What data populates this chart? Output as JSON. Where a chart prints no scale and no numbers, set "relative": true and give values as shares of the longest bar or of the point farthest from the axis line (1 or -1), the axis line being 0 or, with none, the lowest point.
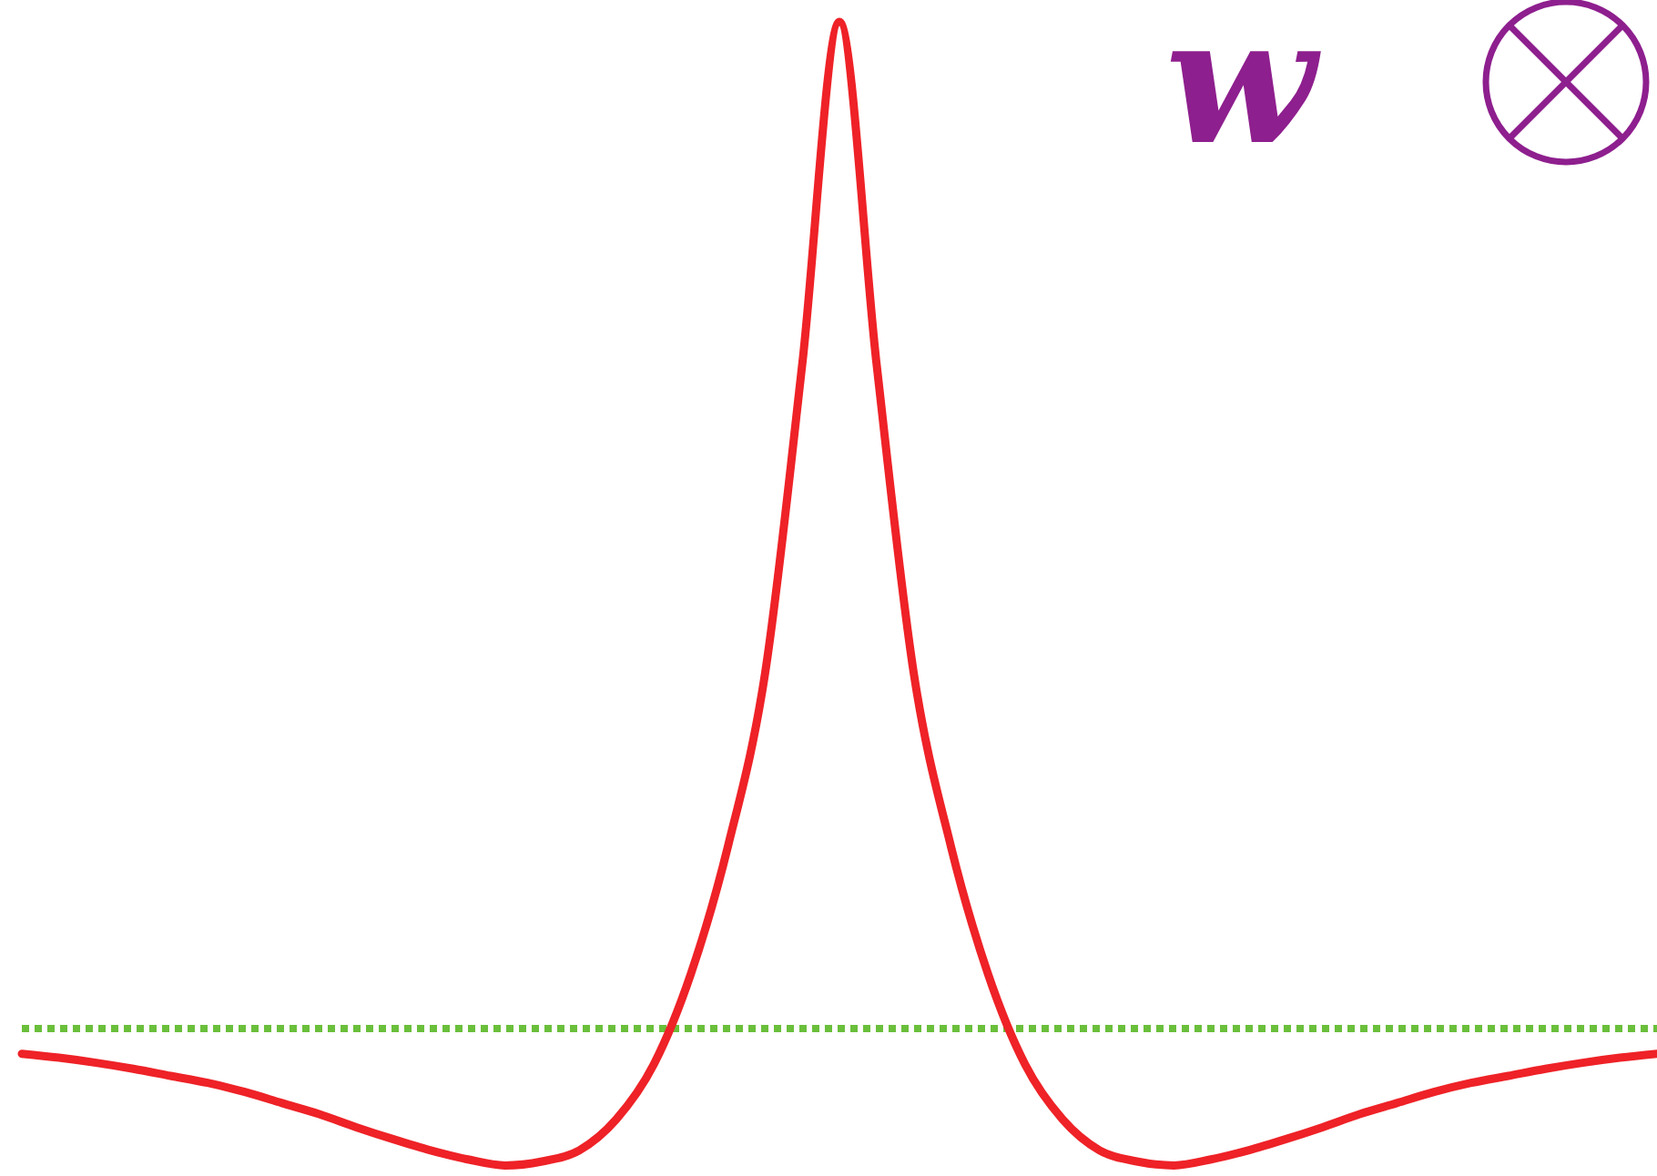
{
  "chart_data": {
    "type": "line",
    "relative": true,
    "categories": [
      null,
      null,
      null,
      null,
      null,
      null,
      null,
      null,
      null,
      null,
      null,
      null,
      null,
      null,
      null,
      null,
      null,
      null,
      null,
      null,
      null,
      null,
      null,
      null,
      null,
      null,
      null,
      null,
      null,
      null,
      null,
      null,
      null,
      null,
      null,
      null,
      null,
      null,
      null,
      null,
      null,
      null,
      null,
      null,
      null
    ],
    "series": [
      {
        "color": "#ee2227",
        "values": [
          -0.025,
          -0.029,
          -0.034,
          -0.04,
          -0.047,
          -0.054,
          -0.063,
          -0.074,
          -0.085,
          -0.098,
          -0.11,
          -0.121,
          -0.13,
          -0.136,
          -0.132,
          -0.121,
          -0.09,
          -0.036,
          0.054,
          0.181,
          0.353,
          0.66,
          1,
          0.66,
          0.353,
          0.181,
          0.054,
          -0.036,
          -0.09,
          -0.121,
          -0.132,
          -0.136,
          -0.13,
          -0.121,
          -0.11,
          -0.098,
          -0.085,
          -0.074,
          -0.063,
          -0.054,
          -0.047,
          -0.04,
          -0.034,
          -0.029,
          -0.025
        ]
      }
    ],
    "ref_lines": [
      {
        "axis": "y",
        "value": 0,
        "color": "#6abf3b",
        "line_style": "dotted"
      }
    ],
    "annotations": [
      "w"
    ],
    "marker": "none",
    "line_style": "solid"
  }
}
